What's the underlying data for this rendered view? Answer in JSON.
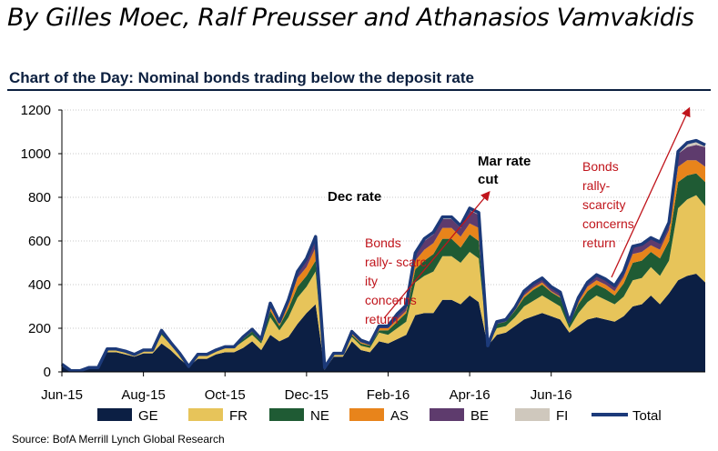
{
  "byline": "By Gilles Moec, Ralf Preusser and Athanasios Vamvakidis",
  "source": "Source: BofA Merrill Lynch Global Research",
  "colors": {
    "GE": "#0c1f44",
    "FR": "#e7c45a",
    "NE": "#1f5b34",
    "AS": "#e8841b",
    "BE": "#5e3b6d",
    "FI": "#cfc8bd",
    "Total": "#1c3a7a",
    "annotation": "#c0141b"
  },
  "chart_data": {
    "type": "area",
    "title": "Chart of the Day: Nominal bonds trading below the deposit rate",
    "xlabel": "",
    "ylabel": "",
    "ylim": [
      0,
      1200
    ],
    "yticks": [
      0,
      200,
      400,
      600,
      800,
      1000,
      1200
    ],
    "x_tick_labels": [
      "Jun-15",
      "Aug-15",
      "Oct-15",
      "Dec-15",
      "Feb-16",
      "Apr-16",
      "Jun-16"
    ],
    "x_tick_index": [
      0,
      9,
      18,
      27,
      36,
      45,
      54
    ],
    "stacked": true,
    "grid": "horizontal",
    "legend_position": "bottom",
    "series": [
      {
        "name": "GE",
        "values": [
          25,
          5,
          5,
          20,
          20,
          90,
          90,
          80,
          70,
          85,
          85,
          130,
          100,
          60,
          25,
          60,
          60,
          80,
          90,
          90,
          110,
          140,
          100,
          170,
          140,
          160,
          220,
          270,
          310,
          10,
          70,
          70,
          140,
          100,
          90,
          140,
          130,
          150,
          170,
          260,
          270,
          270,
          330,
          330,
          310,
          350,
          320,
          120,
          170,
          180,
          210,
          240,
          255,
          270,
          255,
          240,
          180,
          210,
          240,
          250,
          240,
          230,
          255,
          300,
          310,
          350,
          310,
          360,
          420,
          440,
          450,
          410
        ]
      },
      {
        "name": "FR",
        "values": [
          5,
          0,
          0,
          0,
          0,
          10,
          10,
          10,
          10,
          10,
          10,
          40,
          25,
          20,
          0,
          15,
          15,
          15,
          20,
          20,
          30,
          30,
          30,
          80,
          50,
          90,
          120,
          120,
          150,
          5,
          15,
          15,
          20,
          20,
          20,
          40,
          40,
          50,
          60,
          150,
          170,
          190,
          200,
          200,
          190,
          200,
          200,
          0,
          30,
          30,
          40,
          60,
          70,
          80,
          70,
          60,
          20,
          60,
          80,
          100,
          90,
          80,
          90,
          120,
          120,
          130,
          130,
          150,
          330,
          350,
          360,
          350
        ]
      },
      {
        "name": "NE",
        "values": [
          5,
          0,
          0,
          0,
          0,
          5,
          5,
          5,
          0,
          5,
          5,
          10,
          10,
          5,
          0,
          5,
          5,
          5,
          5,
          5,
          10,
          15,
          10,
          30,
          20,
          40,
          50,
          50,
          50,
          5,
          0,
          0,
          10,
          10,
          10,
          10,
          20,
          30,
          40,
          60,
          70,
          80,
          80,
          80,
          70,
          80,
          80,
          0,
          20,
          20,
          30,
          40,
          50,
          50,
          40,
          40,
          20,
          40,
          50,
          50,
          50,
          40,
          60,
          80,
          80,
          70,
          80,
          90,
          120,
          110,
          100,
          110
        ]
      },
      {
        "name": "AS",
        "values": [
          0,
          0,
          0,
          0,
          0,
          0,
          0,
          0,
          0,
          0,
          0,
          5,
          0,
          0,
          0,
          0,
          0,
          0,
          0,
          0,
          5,
          5,
          5,
          15,
          10,
          20,
          40,
          40,
          60,
          0,
          0,
          0,
          5,
          5,
          5,
          10,
          10,
          10,
          10,
          40,
          50,
          50,
          50,
          50,
          50,
          50,
          60,
          0,
          0,
          0,
          5,
          10,
          10,
          10,
          5,
          5,
          0,
          10,
          20,
          20,
          20,
          20,
          30,
          40,
          40,
          30,
          40,
          50,
          70,
          70,
          60,
          70
        ]
      },
      {
        "name": "BE",
        "values": [
          0,
          0,
          0,
          0,
          0,
          0,
          0,
          0,
          0,
          0,
          0,
          5,
          0,
          0,
          0,
          0,
          0,
          0,
          0,
          0,
          5,
          5,
          5,
          20,
          10,
          20,
          25,
          30,
          40,
          0,
          0,
          0,
          10,
          10,
          5,
          10,
          10,
          20,
          20,
          30,
          40,
          40,
          40,
          40,
          40,
          60,
          60,
          0,
          10,
          10,
          10,
          20,
          20,
          20,
          20,
          20,
          10,
          20,
          20,
          20,
          20,
          20,
          20,
          30,
          30,
          30,
          30,
          30,
          60,
          60,
          70,
          90
        ]
      },
      {
        "name": "FI",
        "values": [
          0,
          0,
          0,
          0,
          0,
          0,
          0,
          0,
          0,
          0,
          0,
          0,
          0,
          0,
          0,
          0,
          0,
          0,
          0,
          0,
          0,
          0,
          0,
          0,
          0,
          0,
          5,
          10,
          10,
          0,
          0,
          0,
          0,
          0,
          0,
          0,
          0,
          5,
          5,
          5,
          10,
          10,
          10,
          10,
          10,
          10,
          10,
          0,
          0,
          0,
          0,
          0,
          0,
          0,
          0,
          0,
          0,
          0,
          0,
          5,
          5,
          5,
          5,
          5,
          5,
          5,
          5,
          5,
          10,
          20,
          20,
          10
        ]
      },
      {
        "name": "Total",
        "values": [
          35,
          5,
          5,
          20,
          20,
          105,
          105,
          95,
          80,
          100,
          100,
          190,
          135,
          85,
          25,
          80,
          80,
          100,
          115,
          115,
          160,
          195,
          150,
          315,
          230,
          330,
          460,
          520,
          620,
          20,
          85,
          85,
          185,
          145,
          130,
          210,
          210,
          265,
          305,
          545,
          610,
          640,
          710,
          710,
          670,
          750,
          730,
          120,
          230,
          240,
          295,
          370,
          405,
          430,
          390,
          365,
          230,
          340,
          410,
          445,
          425,
          395,
          460,
          575,
          585,
          615,
          595,
          685,
          1010,
          1050,
          1060,
          1040
        ]
      }
    ],
    "annotations": [
      {
        "text": "Dec rate"
      },
      {
        "text": "Mar rate"
      },
      {
        "text": "cut"
      },
      {
        "lines": [
          "Bonds",
          "rally- scarc",
          "ity",
          "concerns",
          "return"
        ]
      },
      {
        "lines": [
          "Bonds",
          "rally-",
          "scarcity",
          "concerns",
          "return"
        ]
      }
    ]
  }
}
